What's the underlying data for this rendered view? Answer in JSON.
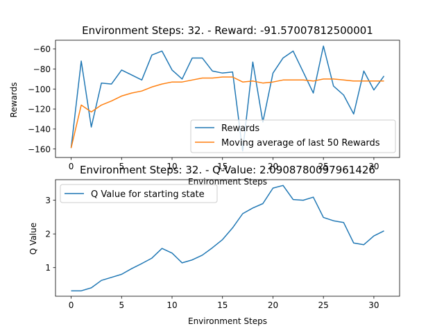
{
  "chart_data": [
    {
      "type": "line",
      "title": "Environment Steps: 32. - Reward: -91.57007812500001",
      "xlabel": "Environment Steps",
      "ylabel": "Rewards",
      "xlim": [
        -1.55,
        32.55
      ],
      "ylim": [
        -168.5,
        -51.2
      ],
      "xticks": [
        0,
        5,
        10,
        15,
        20,
        25,
        30
      ],
      "yticks": [
        -160,
        -140,
        -120,
        -100,
        -80,
        -60
      ],
      "grid": false,
      "legend_position": "lower-right",
      "x": [
        0,
        1,
        2,
        3,
        4,
        5,
        6,
        7,
        8,
        9,
        10,
        11,
        12,
        13,
        14,
        15,
        16,
        17,
        18,
        19,
        20,
        21,
        22,
        23,
        24,
        25,
        26,
        27,
        28,
        29,
        30,
        31
      ],
      "series": [
        {
          "name": "Rewards",
          "color": "#1f77b4",
          "values": [
            -159,
            -72,
            -138,
            -94,
            -95,
            -81,
            -86,
            -91,
            -66,
            -62,
            -81,
            -90,
            -69,
            -69,
            -82,
            -84,
            -83,
            -162,
            -73,
            -133,
            -84,
            -69,
            -62,
            -83,
            -104,
            -57,
            -97,
            -106,
            -125,
            -82,
            -101,
            -87
          ]
        },
        {
          "name": "Moving average of last 50 Rewards",
          "color": "#ff7f0e",
          "values": [
            -159,
            -116,
            -123,
            -116,
            -112,
            -107,
            -104,
            -102,
            -98,
            -95,
            -93,
            -93,
            -91,
            -89,
            -89,
            -88,
            -88,
            -93,
            -92,
            -94,
            -93,
            -91,
            -91,
            -91,
            -92,
            -90,
            -90,
            -91,
            -92,
            -92,
            -92,
            -92
          ]
        }
      ]
    },
    {
      "type": "line",
      "title": "Environment Steps: 32. - Q-Value: 2.090878009796142​6",
      "xlabel": "Environment Steps",
      "ylabel": "Q Value",
      "xlim": [
        -1.55,
        32.55
      ],
      "ylim": [
        0.15,
        3.61
      ],
      "xticks": [
        0,
        5,
        10,
        15,
        20,
        25,
        30
      ],
      "yticks": [
        1,
        2,
        3
      ],
      "grid": false,
      "legend_position": "upper-left",
      "x": [
        0,
        1,
        2,
        3,
        4,
        5,
        6,
        7,
        8,
        9,
        10,
        11,
        12,
        13,
        14,
        15,
        16,
        17,
        18,
        19,
        20,
        21,
        22,
        23,
        24,
        25,
        26,
        27,
        28,
        29,
        30,
        31
      ],
      "series": [
        {
          "name": "Q Value for starting state",
          "color": "#1f77b4",
          "values": [
            0.31,
            0.31,
            0.4,
            0.62,
            0.71,
            0.8,
            0.97,
            1.12,
            1.28,
            1.57,
            1.43,
            1.14,
            1.23,
            1.37,
            1.59,
            1.83,
            2.18,
            2.6,
            2.77,
            2.9,
            3.36,
            3.44,
            3.02,
            3.0,
            3.09,
            2.49,
            2.39,
            2.34,
            1.73,
            1.68,
            1.94,
            2.09
          ]
        }
      ]
    }
  ]
}
